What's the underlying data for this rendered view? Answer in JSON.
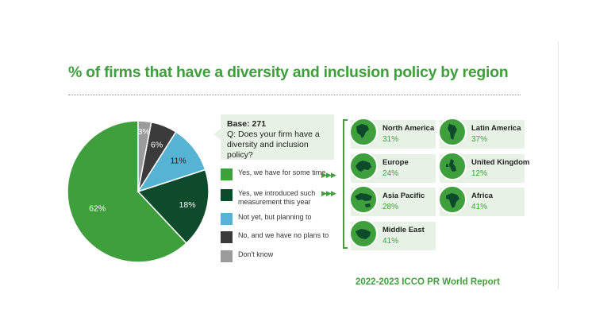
{
  "title": "% of firms that have a diversity and inclusion policy by region",
  "question": {
    "base": "Base: 271",
    "q_line1": "Q: Does your firm have a",
    "q_line2": "diversity and inclusion policy?"
  },
  "chart_data": {
    "type": "pie",
    "labels": [
      "Yes, we have for some time",
      "Yes, we introduced such measurement this year",
      "Not yet, but planning to",
      "No, and we have no plans to",
      "Don't know"
    ],
    "values": [
      62,
      18,
      11,
      6,
      3
    ],
    "value_labels": [
      "62%",
      "18%",
      "11%",
      "6%",
      "3%"
    ],
    "colors": [
      "#3f9f3c",
      "#0e4a2c",
      "#56b3d3",
      "#3b3b3b",
      "#9b9b9b"
    ],
    "label_colors": [
      "#ffffff",
      "#ffffff",
      "#222222",
      "#ffffff",
      "#ffffff"
    ]
  },
  "legend": [
    {
      "line1": "Yes, we have for some time",
      "line2": "",
      "color": "#3f9f3c",
      "arrow": "▶▶▶"
    },
    {
      "line1": "Yes, we introduced such",
      "line2": "measurement this year",
      "color": "#0e4a2c",
      "arrow": "▶▶▶"
    },
    {
      "line1": "Not yet, but planning to",
      "line2": "",
      "color": "#56b3d3",
      "arrow": ""
    },
    {
      "line1": "No, and we have no plans to",
      "line2": "",
      "color": "#3b3b3b",
      "arrow": ""
    },
    {
      "line1": "Don't know",
      "line2": "",
      "color": "#9b9b9b",
      "arrow": ""
    }
  ],
  "regions": [
    {
      "name": "North America",
      "value": "31%",
      "icon": "north-america-map-icon"
    },
    {
      "name": "Latin America",
      "value": "37%",
      "icon": "latin-america-map-icon"
    },
    {
      "name": "Europe",
      "value": "24%",
      "icon": "europe-map-icon"
    },
    {
      "name": "United Kingdom",
      "value": "12%",
      "icon": "united-kingdom-map-icon"
    },
    {
      "name": "Asia Pacific",
      "value": "28%",
      "icon": "asia-pacific-map-icon"
    },
    {
      "name": "Africa",
      "value": "41%",
      "icon": "africa-map-icon"
    },
    {
      "name": "Middle East",
      "value": "41%",
      "icon": "middle-east-map-icon"
    }
  ],
  "footer": "2022-2023 ICCO PR World Report"
}
